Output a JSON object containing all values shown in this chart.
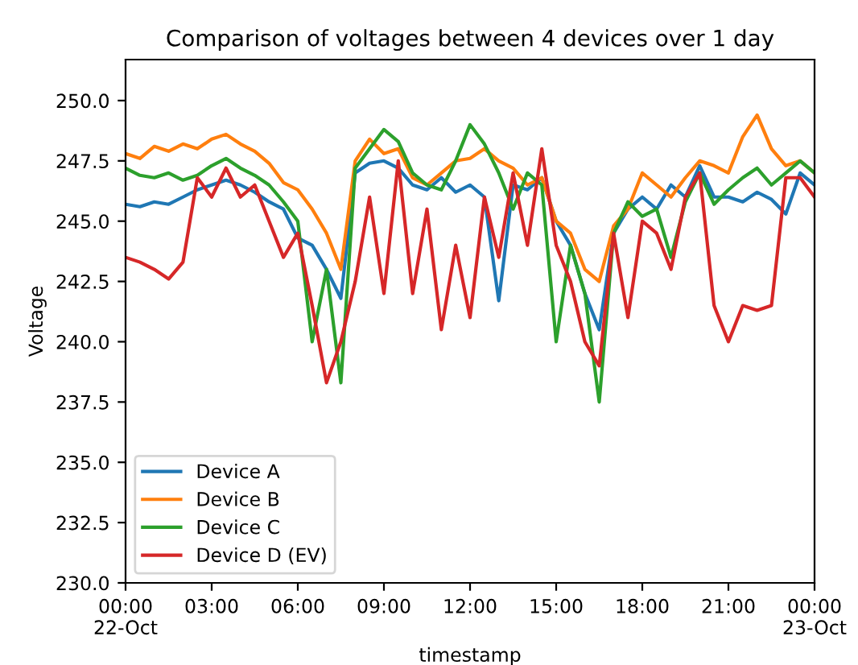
{
  "chart_data": {
    "type": "line",
    "title": "Comparison of voltages between 4 devices over 1 day",
    "xlabel": "timestamp",
    "ylabel": "Voltage",
    "x": [
      0,
      0.5,
      1,
      1.5,
      2,
      2.5,
      3,
      3.5,
      4,
      4.5,
      5,
      5.5,
      6,
      6.5,
      7,
      7.5,
      8,
      8.5,
      9,
      9.5,
      10,
      10.5,
      11,
      11.5,
      12,
      12.5,
      13,
      13.5,
      14,
      14.5,
      15,
      15.5,
      16,
      16.5,
      17,
      17.5,
      18,
      18.5,
      19,
      19.5,
      20,
      20.5,
      21,
      21.5,
      22,
      22.5,
      23,
      23.5,
      24
    ],
    "series": [
      {
        "name": "Device A",
        "color": "#1f77b4",
        "values": [
          245.7,
          245.6,
          245.8,
          245.7,
          246.0,
          246.3,
          246.5,
          246.7,
          246.5,
          246.2,
          245.8,
          245.5,
          244.3,
          244.0,
          243.0,
          241.8,
          247.0,
          247.4,
          247.5,
          247.2,
          246.5,
          246.3,
          246.8,
          246.2,
          246.5,
          246.0,
          241.7,
          246.5,
          246.3,
          246.8,
          245.0,
          244.0,
          242.0,
          240.5,
          244.5,
          245.5,
          246.0,
          245.5,
          246.5,
          246.0,
          247.3,
          246.0,
          246.0,
          245.8,
          246.2,
          245.9,
          245.3,
          247.0,
          246.5
        ]
      },
      {
        "name": "Device B",
        "color": "#ff7f0e",
        "values": [
          247.8,
          247.6,
          248.1,
          247.9,
          248.2,
          248.0,
          248.4,
          248.6,
          248.2,
          247.9,
          247.4,
          246.6,
          246.3,
          245.5,
          244.5,
          243.0,
          247.5,
          248.4,
          247.8,
          248.0,
          246.8,
          246.5,
          247.0,
          247.5,
          247.6,
          248.0,
          247.5,
          247.2,
          246.5,
          246.8,
          245.0,
          244.5,
          243.0,
          242.5,
          244.8,
          245.5,
          247.0,
          246.5,
          246.0,
          246.8,
          247.5,
          247.3,
          247.0,
          248.5,
          249.4,
          248.0,
          247.3,
          247.5,
          247.0
        ]
      },
      {
        "name": "Device C",
        "color": "#2ca02c",
        "values": [
          247.2,
          246.9,
          246.8,
          247.0,
          246.7,
          246.9,
          247.3,
          247.6,
          247.2,
          246.9,
          246.5,
          245.8,
          245.0,
          240.0,
          243.0,
          238.3,
          247.2,
          248.0,
          248.8,
          248.3,
          247.0,
          246.5,
          246.3,
          247.5,
          249.0,
          248.2,
          247.0,
          245.5,
          247.0,
          246.5,
          240.0,
          244.0,
          242.0,
          237.5,
          244.5,
          245.8,
          245.2,
          245.5,
          243.5,
          245.8,
          247.0,
          245.7,
          246.3,
          246.8,
          247.2,
          246.5,
          247.0,
          247.5,
          247.0
        ]
      },
      {
        "name": "Device D (EV)",
        "color": "#d62728",
        "values": [
          243.5,
          243.3,
          243.0,
          242.6,
          243.3,
          246.8,
          246.0,
          247.2,
          246.0,
          246.5,
          245.0,
          243.5,
          244.5,
          241.5,
          238.3,
          240.0,
          242.5,
          246.0,
          242.0,
          247.5,
          242.0,
          245.5,
          240.5,
          244.0,
          241.0,
          246.0,
          243.5,
          247.0,
          244.0,
          248.0,
          244.0,
          242.5,
          240.0,
          239.0,
          244.5,
          241.0,
          245.0,
          244.5,
          243.0,
          246.0,
          247.0,
          241.5,
          240.0,
          241.5,
          241.3,
          241.5,
          246.8,
          246.8,
          246.0
        ]
      }
    ],
    "xlim": [
      0,
      24
    ],
    "xticks": [
      {
        "value": 0,
        "label": "00:00\n22-Oct"
      },
      {
        "value": 3,
        "label": "03:00"
      },
      {
        "value": 6,
        "label": "06:00"
      },
      {
        "value": 9,
        "label": "09:00"
      },
      {
        "value": 12,
        "label": "12:00"
      },
      {
        "value": 15,
        "label": "15:00"
      },
      {
        "value": 18,
        "label": "18:00"
      },
      {
        "value": 21,
        "label": "21:00"
      },
      {
        "value": 24,
        "label": "00:00\n23-Oct"
      }
    ],
    "ylim": [
      230,
      251.7
    ],
    "yticks": [
      {
        "value": 230,
        "label": "230.0"
      },
      {
        "value": 232.5,
        "label": "232.5"
      },
      {
        "value": 235,
        "label": "235.0"
      },
      {
        "value": 237.5,
        "label": "237.5"
      },
      {
        "value": 240,
        "label": "240.0"
      },
      {
        "value": 242.5,
        "label": "242.5"
      },
      {
        "value": 245,
        "label": "245.0"
      },
      {
        "value": 247.5,
        "label": "247.5"
      },
      {
        "value": 250,
        "label": "250.0"
      }
    ],
    "grid": false,
    "legend": "lower left",
    "marker": "none",
    "line_style": "solid"
  }
}
